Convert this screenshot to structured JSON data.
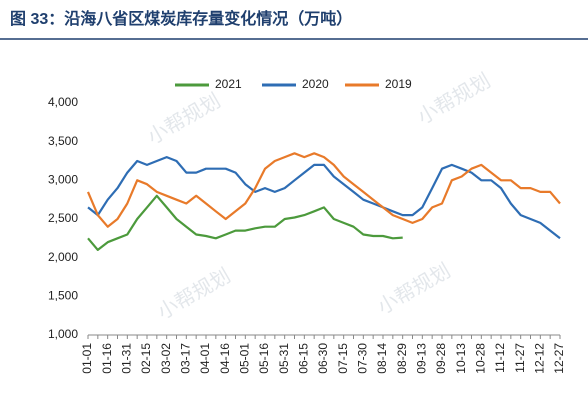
{
  "chart_data": {
    "type": "line",
    "title": "图 33：沿海八省区煤炭库存量变化情况（万吨）",
    "watermark": "小帮规划",
    "categories": [
      "01-01",
      null,
      "01-16",
      null,
      "01-31",
      null,
      "02-15",
      null,
      "03-02",
      null,
      "03-17",
      null,
      "04-01",
      null,
      "04-16",
      null,
      "05-01",
      null,
      "05-16",
      null,
      "05-31",
      null,
      "06-15",
      null,
      "06-30",
      null,
      "07-15",
      null,
      "07-30",
      null,
      "08-14",
      null,
      "08-29",
      null,
      "09-13",
      null,
      "09-28",
      null,
      "10-13",
      null,
      "10-28",
      null,
      "11-12",
      null,
      "11-27",
      null,
      "12-12",
      null,
      "12-27"
    ],
    "series": [
      {
        "name": "2021",
        "color": "#4c9a3c",
        "values": [
          2250,
          2100,
          2200,
          2250,
          2300,
          2500,
          2650,
          2800,
          2650,
          2500,
          2400,
          2300,
          2280,
          2250,
          2300,
          2350,
          2350,
          2380,
          2400,
          2400,
          2500,
          2520,
          2550,
          2600,
          2650,
          2500,
          2450,
          2400,
          2300,
          2280,
          2280,
          2250,
          2260,
          null,
          null,
          null,
          null,
          null,
          null,
          null,
          null,
          null,
          null,
          null,
          null,
          null,
          null,
          null,
          null
        ]
      },
      {
        "name": "2020",
        "color": "#2e6db4",
        "values": [
          2650,
          2550,
          2750,
          2900,
          3100,
          3250,
          3200,
          3250,
          3300,
          3250,
          3100,
          3100,
          3150,
          3150,
          3150,
          3100,
          2950,
          2850,
          2900,
          2850,
          2900,
          3000,
          3100,
          3200,
          3200,
          3050,
          2950,
          2850,
          2750,
          2700,
          2650,
          2600,
          2550,
          2550,
          2650,
          2900,
          3150,
          3200,
          3150,
          3100,
          3000,
          3000,
          2900,
          2700,
          2550,
          2500,
          2450,
          2350,
          2250
        ]
      },
      {
        "name": "2019",
        "color": "#e87a2a",
        "values": [
          2850,
          2550,
          2400,
          2500,
          2700,
          3000,
          2950,
          2850,
          2800,
          2750,
          2700,
          2800,
          2700,
          2600,
          2500,
          2600,
          2700,
          2900,
          3150,
          3250,
          3300,
          3350,
          3300,
          3350,
          3300,
          3200,
          3050,
          2950,
          2850,
          2750,
          2650,
          2550,
          2500,
          2450,
          2500,
          2650,
          2700,
          3000,
          3050,
          3150,
          3200,
          3100,
          3000,
          3000,
          2900,
          2900,
          2850,
          2850,
          2700
        ]
      }
    ],
    "ylim": [
      1000,
      4000
    ],
    "yticks": [
      {
        "value": 1000,
        "label": "1,000"
      },
      {
        "value": 1500,
        "label": "1,500"
      },
      {
        "value": 2000,
        "label": "2,000"
      },
      {
        "value": 2500,
        "label": "2,500"
      },
      {
        "value": 3000,
        "label": "3,000"
      },
      {
        "value": 3500,
        "label": "3,500"
      },
      {
        "value": 4000,
        "label": "4,000"
      }
    ],
    "grid": false,
    "legend": "top"
  }
}
